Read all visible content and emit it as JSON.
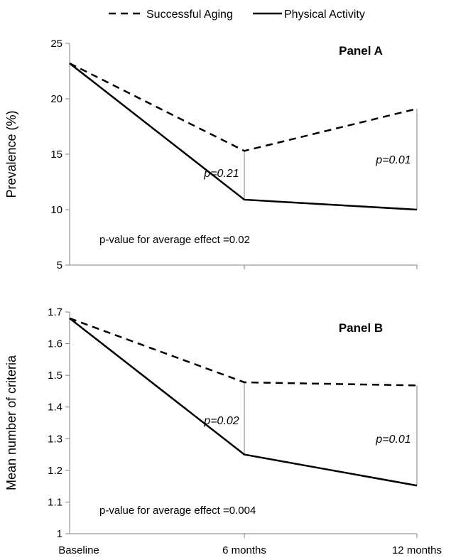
{
  "chart_data": {
    "type": "line",
    "legend": {
      "placement": "top-center",
      "entries": [
        {
          "name": "Successful Aging",
          "dash": "dashed"
        },
        {
          "name": "Physical Activity",
          "dash": "solid"
        }
      ]
    },
    "x_categories": [
      "Baseline",
      "6 months",
      "12 months"
    ],
    "panels": [
      {
        "title": "Panel A",
        "ylabel": "Prevalence (%)",
        "ylim": [
          5,
          25
        ],
        "yticks": [
          5,
          10,
          15,
          20,
          25
        ],
        "series": [
          {
            "name": "Successful Aging",
            "values": [
              23.2,
              15.3,
              19.1
            ]
          },
          {
            "name": "Physical Activity",
            "values": [
              23.2,
              10.9,
              10.0
            ]
          }
        ],
        "pvalues": [
          {
            "at": "6 months",
            "label": "p=0.21"
          },
          {
            "at": "12 months",
            "label": "p=0.01"
          }
        ],
        "annotation": "p-value for average effect =0.02"
      },
      {
        "title": "Panel B",
        "ylabel": "Mean number of criteria",
        "ylim": [
          1,
          1.7
        ],
        "yticks": [
          1,
          1.1,
          1.2,
          1.3,
          1.4,
          1.5,
          1.6,
          1.7
        ],
        "series": [
          {
            "name": "Successful Aging",
            "values": [
              1.68,
              1.478,
              1.468
            ]
          },
          {
            "name": "Physical Activity",
            "values": [
              1.68,
              1.25,
              1.152
            ]
          }
        ],
        "pvalues": [
          {
            "at": "6 months",
            "label": "p=0.02"
          },
          {
            "at": "12 months",
            "label": "p=0.01"
          }
        ],
        "annotation": "p-value for average effect =0.004"
      }
    ]
  }
}
